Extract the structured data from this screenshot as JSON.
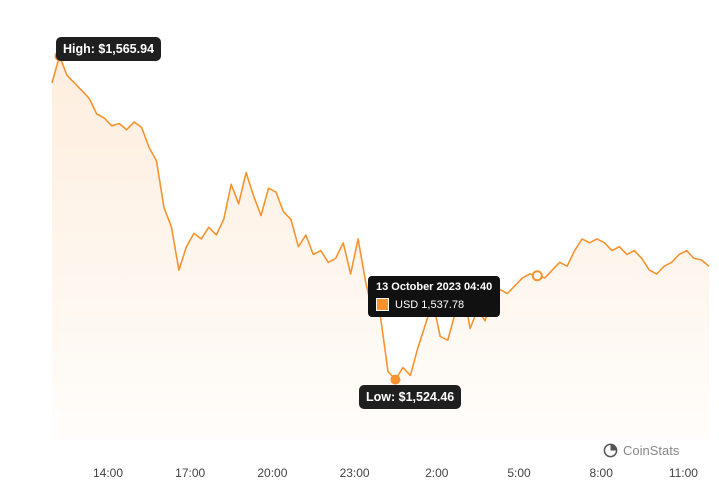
{
  "chart_data": {
    "type": "area",
    "currency": "USD",
    "x_ticks": [
      "14:00",
      "17:00",
      "20:00",
      "23:00",
      "2:00",
      "5:00",
      "8:00",
      "11:00"
    ],
    "y_range": [
      1518,
      1568
    ],
    "grid": false,
    "line_color": "#f7932f",
    "points": [
      [
        0,
        1562.5
      ],
      [
        0.2,
        1565.94
      ],
      [
        0.4,
        1563.5
      ],
      [
        0.6,
        1562.5
      ],
      [
        0.8,
        1561.5
      ],
      [
        1.0,
        1560.5
      ],
      [
        1.2,
        1558.5
      ],
      [
        1.4,
        1558.0
      ],
      [
        1.6,
        1557.0
      ],
      [
        1.8,
        1557.3
      ],
      [
        2.0,
        1556.5
      ],
      [
        2.2,
        1557.5
      ],
      [
        2.4,
        1556.8
      ],
      [
        2.6,
        1554.2
      ],
      [
        2.8,
        1552.5
      ],
      [
        3.0,
        1546.5
      ],
      [
        3.2,
        1544.0
      ],
      [
        3.4,
        1538.5
      ],
      [
        3.6,
        1541.5
      ],
      [
        3.8,
        1543.2
      ],
      [
        4.0,
        1542.5
      ],
      [
        4.2,
        1544.0
      ],
      [
        4.4,
        1543.0
      ],
      [
        4.6,
        1545.0
      ],
      [
        4.8,
        1549.5
      ],
      [
        5.0,
        1547.0
      ],
      [
        5.2,
        1551.0
      ],
      [
        5.4,
        1548.0
      ],
      [
        5.6,
        1545.5
      ],
      [
        5.8,
        1549.0
      ],
      [
        6.0,
        1548.5
      ],
      [
        6.2,
        1546.0
      ],
      [
        6.4,
        1545.0
      ],
      [
        6.6,
        1541.5
      ],
      [
        6.8,
        1543.0
      ],
      [
        7.0,
        1540.5
      ],
      [
        7.2,
        1541.0
      ],
      [
        7.4,
        1539.5
      ],
      [
        7.6,
        1540.0
      ],
      [
        7.8,
        1542.0
      ],
      [
        8.0,
        1538.0
      ],
      [
        8.2,
        1542.5
      ],
      [
        8.4,
        1537.0
      ],
      [
        8.6,
        1533.0
      ],
      [
        8.8,
        1532.5
      ],
      [
        9.0,
        1525.5
      ],
      [
        9.2,
        1524.46
      ],
      [
        9.4,
        1526.0
      ],
      [
        9.6,
        1525.0
      ],
      [
        9.8,
        1528.5
      ],
      [
        10.0,
        1531.5
      ],
      [
        10.2,
        1534.5
      ],
      [
        10.4,
        1530.0
      ],
      [
        10.6,
        1529.5
      ],
      [
        10.8,
        1533.0
      ],
      [
        11.0,
        1536.5
      ],
      [
        11.2,
        1531.0
      ],
      [
        11.4,
        1533.5
      ],
      [
        11.6,
        1532.0
      ],
      [
        11.8,
        1535.0
      ],
      [
        12.0,
        1536.0
      ],
      [
        12.2,
        1535.5
      ],
      [
        12.4,
        1536.5
      ],
      [
        12.6,
        1537.5
      ],
      [
        12.8,
        1538.0
      ],
      [
        13.0,
        1537.78
      ],
      [
        13.2,
        1537.5
      ],
      [
        13.4,
        1538.5
      ],
      [
        13.6,
        1539.5
      ],
      [
        13.8,
        1539.0
      ],
      [
        14.0,
        1541.0
      ],
      [
        14.2,
        1542.5
      ],
      [
        14.4,
        1542.0
      ],
      [
        14.6,
        1542.5
      ],
      [
        14.8,
        1542.0
      ],
      [
        15.0,
        1541.0
      ],
      [
        15.2,
        1541.5
      ],
      [
        15.4,
        1540.5
      ],
      [
        15.6,
        1541.0
      ],
      [
        15.8,
        1540.0
      ],
      [
        16.0,
        1538.5
      ],
      [
        16.2,
        1538.0
      ],
      [
        16.4,
        1539.0
      ],
      [
        16.6,
        1539.5
      ],
      [
        16.8,
        1540.5
      ],
      [
        17.0,
        1541.0
      ],
      [
        17.2,
        1540.0
      ],
      [
        17.4,
        1539.8
      ],
      [
        17.6,
        1539.0
      ]
    ],
    "annotations": {
      "high": {
        "label": "High: $1,565.94",
        "x": 0.2,
        "y": 1565.94
      },
      "low": {
        "label": "Low: $1,524.46",
        "x": 9.2,
        "y": 1524.46
      },
      "hover": {
        "title": "13 October 2023 04:40",
        "value_label": "USD 1,537.78",
        "x": 13.0,
        "y": 1537.78
      }
    }
  },
  "brand": {
    "name": "CoinStats",
    "icon": "coinstats-logo-icon"
  }
}
